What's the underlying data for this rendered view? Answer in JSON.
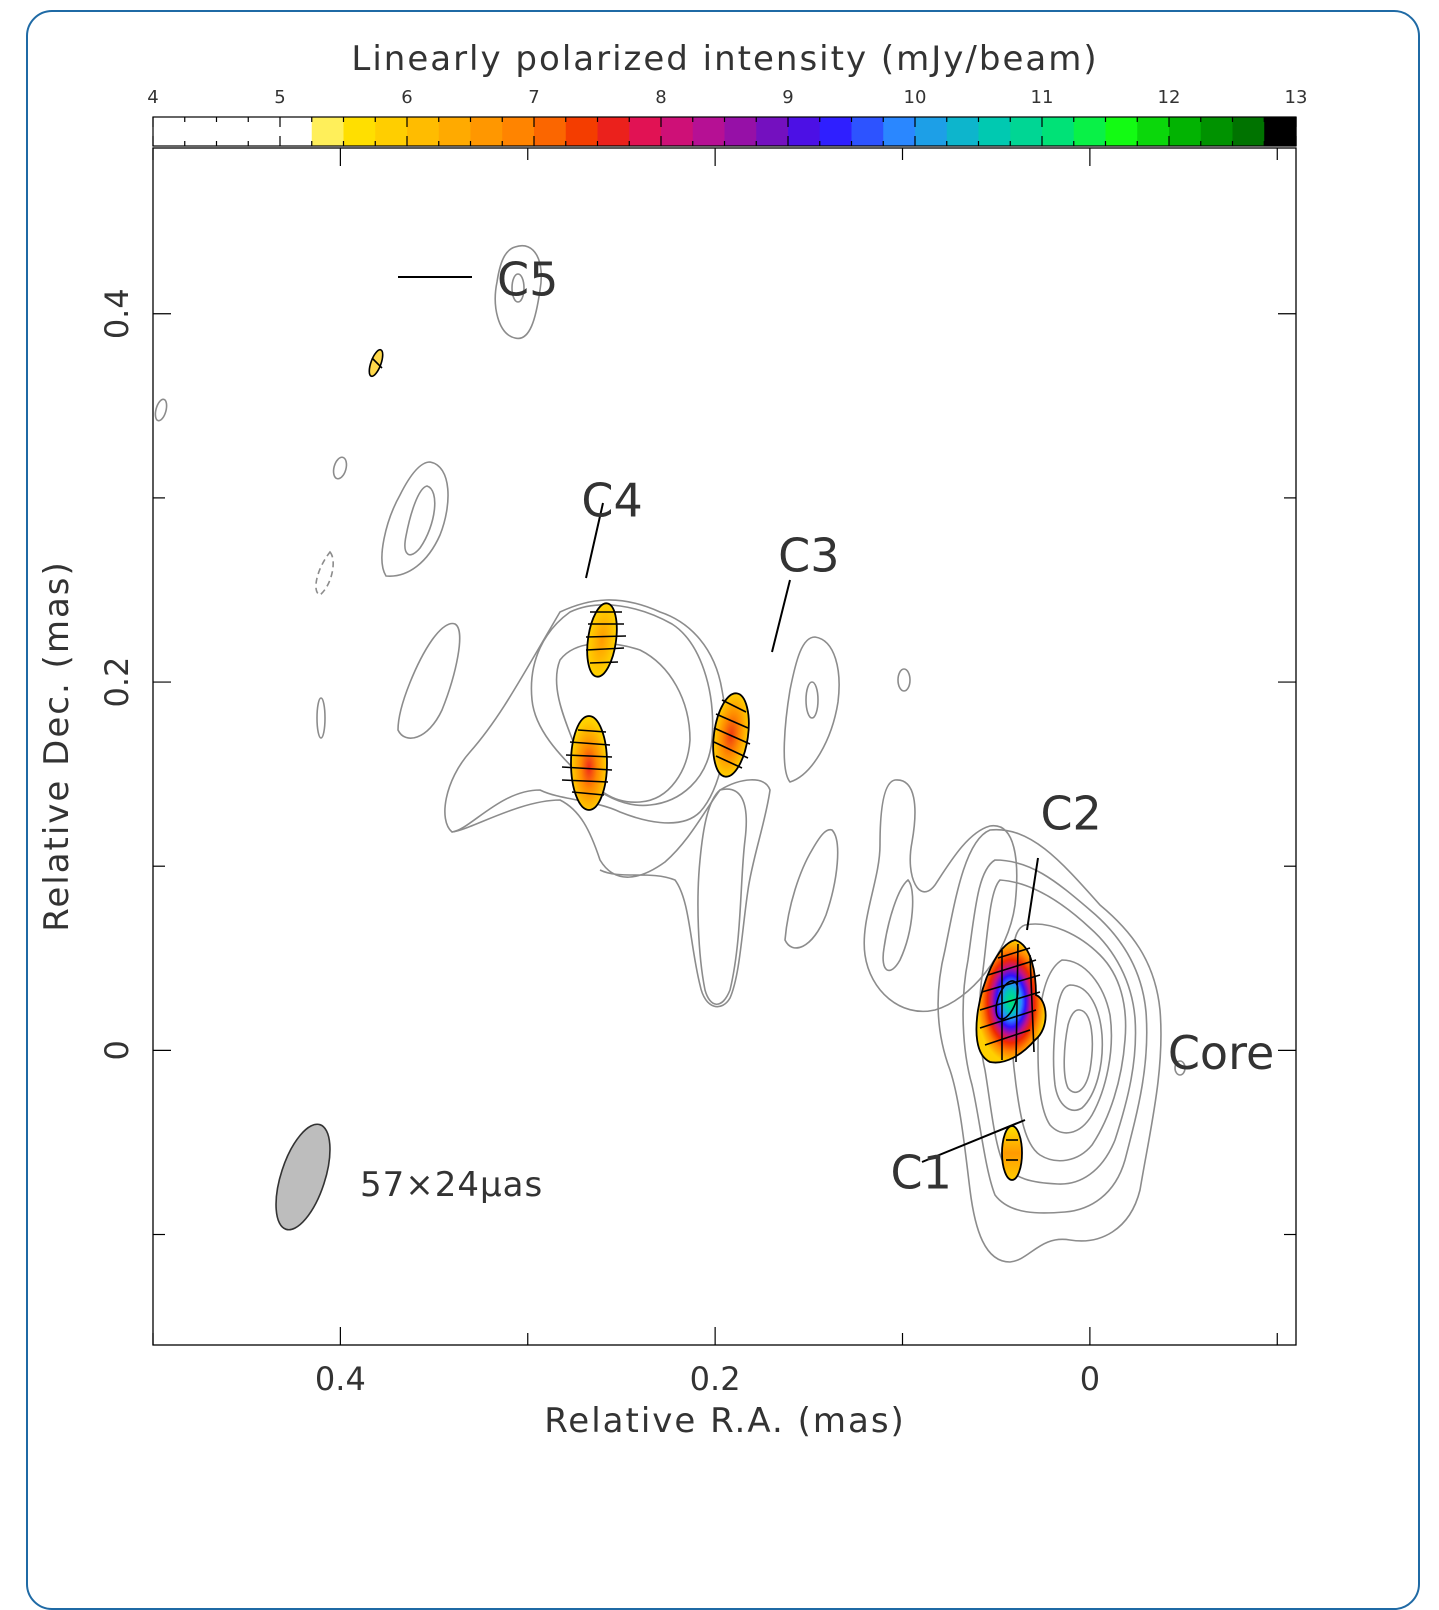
{
  "chart_data": {
    "type": "heatmap",
    "colorbar": {
      "title": "Linearly polarized intensity (mJy/beam)",
      "ticks": [
        4,
        5,
        6,
        7,
        8,
        9,
        10,
        11,
        12,
        13
      ],
      "range": [
        4,
        13
      ],
      "blank_below": 5.2,
      "stops": [
        {
          "v": 5.2,
          "c": "#fff9a0"
        },
        {
          "v": 5.6,
          "c": "#ffe100"
        },
        {
          "v": 6.3,
          "c": "#ffb000"
        },
        {
          "v": 7.0,
          "c": "#ff7a00"
        },
        {
          "v": 7.5,
          "c": "#f02800"
        },
        {
          "v": 7.9,
          "c": "#e0105a"
        },
        {
          "v": 8.3,
          "c": "#c0108e"
        },
        {
          "v": 8.8,
          "c": "#8010b4"
        },
        {
          "v": 9.3,
          "c": "#3010ff"
        },
        {
          "v": 9.9,
          "c": "#2a8cff"
        },
        {
          "v": 10.6,
          "c": "#00c8b4"
        },
        {
          "v": 11.2,
          "c": "#00e66e"
        },
        {
          "v": 11.6,
          "c": "#14ff14"
        },
        {
          "v": 12.2,
          "c": "#00a800"
        },
        {
          "v": 12.7,
          "c": "#006a00"
        },
        {
          "v": 12.8,
          "c": "#000000"
        },
        {
          "v": 13.0,
          "c": "#000000"
        }
      ]
    },
    "xlabel": "Relative R.A. (mas)",
    "ylabel": "Relative Dec. (mas)",
    "xlim": [
      0.5,
      -0.11
    ],
    "ylim": [
      -0.16,
      0.49
    ],
    "xticks": [
      0.4,
      0.2,
      0
    ],
    "yticks": [
      0.4,
      0.2,
      0
    ],
    "x_minor_step": 0.1,
    "y_minor_step": 0.1,
    "beam": {
      "major_uas": 57,
      "minor_uas": 24,
      "label": "57×24μas",
      "x": 0.415,
      "y": -0.07,
      "color": "#bdbdbd"
    },
    "components": [
      {
        "name": "C5",
        "x": 0.3,
        "y": 0.41
      },
      {
        "name": "C4",
        "x": 0.255,
        "y": 0.29
      },
      {
        "name": "C3",
        "x": 0.15,
        "y": 0.26
      },
      {
        "name": "C2",
        "x": 0.01,
        "y": 0.12
      },
      {
        "name": "Core",
        "x": -0.07,
        "y": -0.01
      },
      {
        "name": "C1",
        "x": 0.09,
        "y": -0.075
      }
    ],
    "polarized_patches": [
      {
        "x": 0.38,
        "y": 0.365,
        "peak": 5.5
      },
      {
        "x": 0.258,
        "y": 0.215,
        "peak": 6.5
      },
      {
        "x": 0.267,
        "y": 0.15,
        "peak": 7.6
      },
      {
        "x": 0.19,
        "y": 0.165,
        "peak": 7.6
      },
      {
        "x": 0.045,
        "y": 0.025,
        "peak": 11.3
      },
      {
        "x": 0.042,
        "y": -0.057,
        "peak": 5.6
      }
    ]
  }
}
